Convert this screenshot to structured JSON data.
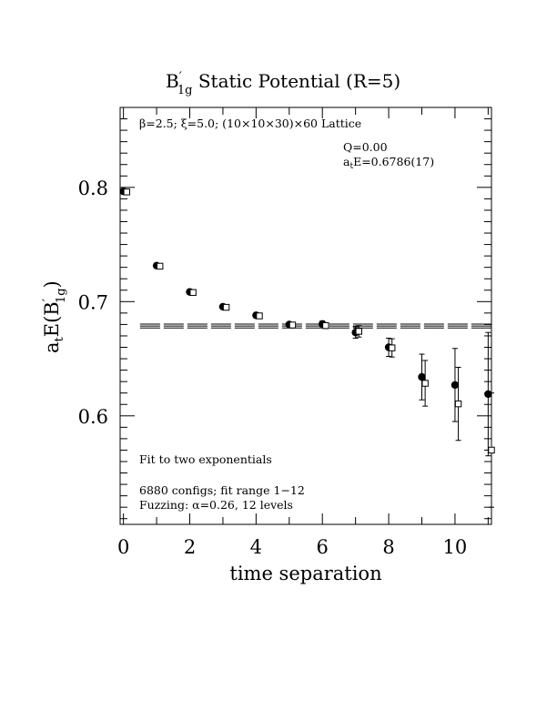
{
  "chart_data": {
    "type": "scatter",
    "title_main": "B",
    "title_prime": "′",
    "title_sub": "1g",
    "title_rest": " Static Potential (R=5)",
    "xlabel": "time separation",
    "ylabel_main": "a",
    "ylabel_sub": "t",
    "ylabel_mid": "E(B",
    "ylabel_prime": "′",
    "ylabel_sub2": "1g",
    "ylabel_end": ")",
    "xlim": [
      -0.1,
      11.1
    ],
    "ylim": [
      0.505,
      0.87
    ],
    "xticks": [
      "0",
      "2",
      "4",
      "6",
      "8",
      "10"
    ],
    "yticks": [
      "0.6",
      "0.7",
      "0.8"
    ],
    "header_note": "β=2.5; ξ=5.0; (10×10×30)×60 Lattice",
    "q_label": "Q=0.00",
    "energy_label_a": "a",
    "energy_label_sub": "t",
    "energy_label_rest": "E=0.6786(17)",
    "fit_label": "Fit to two exponentials",
    "configs_label": "6880 configs; fit range 1−12",
    "fuzzing_label": "Fuzzing: α=0.26, 12 levels",
    "fit_line": {
      "value": 0.6786,
      "error": 0.0017,
      "x_start": 0.5,
      "x_end": 11.1
    },
    "series": [
      {
        "marker": "filled-circle",
        "x": [
          0,
          1,
          2,
          3,
          4,
          5,
          6,
          7,
          8,
          9,
          10,
          11
        ],
        "y": [
          0.7965,
          0.7315,
          0.7085,
          0.6955,
          0.688,
          0.68,
          0.6805,
          0.673,
          0.66,
          0.634,
          0.627,
          0.619
        ],
        "err": [
          0.001,
          0.0015,
          0.0015,
          0.0015,
          0.002,
          0.002,
          0.0025,
          0.005,
          0.008,
          0.02,
          0.032,
          0.054
        ]
      },
      {
        "marker": "open-square",
        "x": [
          0.1,
          1.1,
          2.1,
          3.1,
          4.1,
          5.1,
          6.1,
          7.1,
          8.1,
          9.1,
          10.1,
          11.1
        ],
        "y": [
          0.796,
          0.731,
          0.708,
          0.695,
          0.6875,
          0.6795,
          0.679,
          0.674,
          0.6595,
          0.6285,
          0.6105,
          0.57
        ],
        "err": [
          0.001,
          0.0015,
          0.0015,
          0.0015,
          0.002,
          0.002,
          0.0025,
          0.005,
          0.008,
          0.02,
          0.032,
          0.05
        ]
      }
    ]
  }
}
